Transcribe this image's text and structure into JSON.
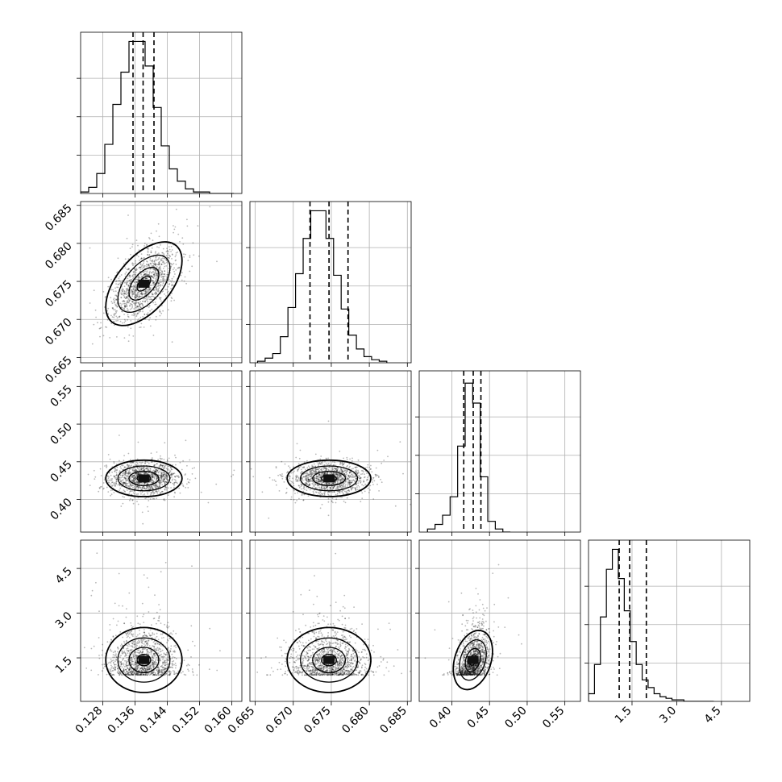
{
  "chart_data": {
    "type": "corner",
    "grid": true,
    "parameters": [
      {
        "range": [
          0.1225,
          0.1625
        ],
        "ticks": [
          0.128,
          0.136,
          0.144,
          0.152,
          0.16
        ],
        "tick_labels": [
          "0.128",
          "0.136",
          "0.144",
          "0.152",
          "0.160"
        ],
        "quantiles": [
          0.1355,
          0.138,
          0.1407
        ],
        "hist_bins": [
          0.1225,
          0.1245,
          0.1265,
          0.1285,
          0.1305,
          0.1325,
          0.1345,
          0.1365,
          0.1385,
          0.1405,
          0.1425,
          0.1445,
          0.1465,
          0.1485,
          0.1505,
          0.1525,
          0.1545,
          0.1565,
          0.1585,
          0.1605
        ],
        "hist_counts": [
          1,
          4,
          13,
          32,
          58,
          79,
          99,
          99,
          83,
          56,
          31,
          16,
          8,
          3,
          1,
          1,
          0,
          0,
          0
        ],
        "mean": 0.1382,
        "sigma": 0.0043
      },
      {
        "range": [
          0.6643,
          0.6855
        ],
        "ticks": [
          0.665,
          0.67,
          0.675,
          0.68,
          0.685
        ],
        "tick_labels": [
          "0.665",
          "0.670",
          "0.675",
          "0.680",
          "0.685"
        ],
        "quantiles": [
          0.6722,
          0.6747,
          0.6772
        ],
        "hist_bins": [
          0.6653,
          0.6663,
          0.6673,
          0.6683,
          0.6693,
          0.6703,
          0.6713,
          0.6723,
          0.6733,
          0.6743,
          0.6753,
          0.6763,
          0.6773,
          0.6783,
          0.6793,
          0.6803,
          0.6813,
          0.6823
        ],
        "hist_counts": [
          1,
          3,
          6,
          17,
          36,
          58,
          81,
          99,
          99,
          81,
          57,
          35,
          18,
          9,
          4,
          2,
          1
        ],
        "mean": 0.6747,
        "sigma": 0.0025
      },
      {
        "range": [
          0.3567,
          0.5707
        ],
        "ticks": [
          0.4,
          0.45,
          0.5,
          0.55
        ],
        "tick_labels": [
          "0.40",
          "0.45",
          "0.50",
          "0.55"
        ],
        "quantiles": [
          0.4158,
          0.4284,
          0.4386
        ],
        "hist_bins": [
          0.3677,
          0.3777,
          0.3877,
          0.3977,
          0.4077,
          0.4177,
          0.4277,
          0.4377,
          0.4477,
          0.4577,
          0.4677,
          0.4777
        ],
        "hist_counts": [
          2,
          5,
          11,
          23,
          56,
          97,
          84,
          36,
          7,
          2,
          0
        ],
        "mean": 0.428,
        "sigma": 0.011
      },
      {
        "range": [
          0.04,
          5.45
        ],
        "ticks": [
          1.5,
          3.0,
          4.5
        ],
        "tick_labels": [
          "1.5",
          "3.0",
          "4.5"
        ],
        "quantiles": [
          1.07,
          1.42,
          1.98
        ],
        "hist_bins": [
          0.04,
          0.24,
          0.44,
          0.64,
          0.84,
          1.04,
          1.24,
          1.44,
          1.64,
          1.84,
          2.04,
          2.24,
          2.44,
          2.64,
          2.84,
          3.04,
          3.24,
          3.44,
          3.64,
          3.84,
          4.04,
          4.24
        ],
        "hist_counts": [
          5,
          24,
          55,
          86,
          99,
          80,
          59,
          39,
          24,
          14,
          9,
          5,
          3,
          2,
          1,
          1,
          0,
          0,
          0,
          0,
          0
        ],
        "mean": 1.45,
        "sigma": 0.45
      }
    ],
    "correlations": [
      [
        1.0,
        0.55,
        0.0,
        0.0
      ],
      [
        0.55,
        1.0,
        0.0,
        0.0
      ],
      [
        0.0,
        0.0,
        1.0,
        0.35
      ],
      [
        0.0,
        0.0,
        0.35,
        1.0
      ]
    ],
    "contour_levels": [
      0.39,
      0.86,
      1.5,
      2.2
    ]
  }
}
